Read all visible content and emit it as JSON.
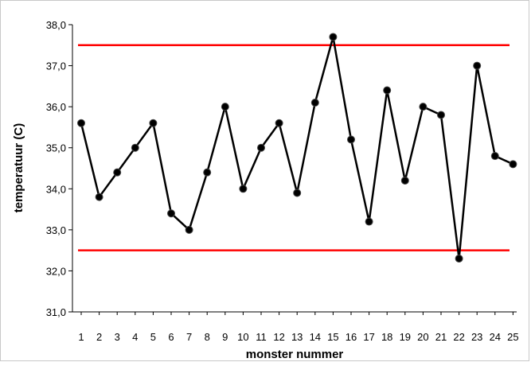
{
  "chart_data": {
    "type": "line",
    "xlabel": "monster nummer",
    "ylabel": "temperatuur (C)",
    "x": [
      1,
      2,
      3,
      4,
      5,
      6,
      7,
      8,
      9,
      10,
      11,
      12,
      13,
      14,
      15,
      16,
      17,
      18,
      19,
      20,
      21,
      22,
      23,
      24,
      25
    ],
    "series": [
      {
        "values": [
          35.6,
          33.8,
          34.4,
          35.0,
          35.6,
          33.4,
          33.0,
          34.4,
          36.0,
          34.0,
          35.0,
          35.6,
          33.9,
          36.1,
          37.7,
          35.2,
          33.2,
          36.4,
          34.2,
          36.0,
          35.8,
          32.3,
          37.0,
          34.8,
          34.6
        ]
      }
    ],
    "control_limits": {
      "upper": 37.5,
      "lower": 32.5,
      "color": "#ff0000"
    },
    "ylim": [
      31.0,
      38.0
    ],
    "yticks": [
      "31,0",
      "32,0",
      "33,0",
      "34,0",
      "35,0",
      "36,0",
      "37,0",
      "38,0"
    ],
    "xticks": [
      "1",
      "2",
      "3",
      "4",
      "5",
      "6",
      "7",
      "8",
      "9",
      "10",
      "11",
      "12",
      "13",
      "14",
      "15",
      "16",
      "17",
      "18",
      "19",
      "20",
      "21",
      "22",
      "23",
      "24",
      "25"
    ],
    "grid": false,
    "legend": "none",
    "line_color": "#000000",
    "marker_color": "#000000"
  }
}
